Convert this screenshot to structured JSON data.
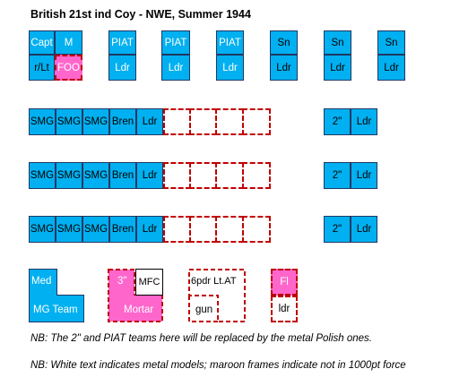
{
  "title": "British 21st ind Coy - NWE, Summer 1944",
  "colors": {
    "blue": "#00b0f0",
    "pink": "#ff66cc",
    "maroon": "#c00000"
  },
  "hq": {
    "top": [
      "Capt",
      "M"
    ],
    "bottom": [
      "r/Lt",
      "FOO"
    ]
  },
  "support_teams": [
    {
      "top": "PIAT",
      "bottom": "Ldr"
    },
    {
      "top": "PIAT",
      "bottom": "Ldr"
    },
    {
      "top": "PIAT",
      "bottom": "Ldr"
    },
    {
      "top": "Sn",
      "bottom": "Ldr"
    },
    {
      "top": "Sn",
      "bottom": "Ldr"
    },
    {
      "top": "Sn",
      "bottom": "Ldr"
    }
  ],
  "platoons": [
    {
      "cells": [
        "SMG",
        "SMG",
        "SMG",
        "Bren",
        "Ldr"
      ],
      "mortar": [
        "2\"",
        "Ldr"
      ]
    },
    {
      "cells": [
        "SMG",
        "SMG",
        "SMG",
        "Bren",
        "Ldr"
      ],
      "mortar": [
        "2\"",
        "Ldr"
      ]
    },
    {
      "cells": [
        "SMG",
        "SMG",
        "SMG",
        "Bren",
        "Ldr"
      ],
      "mortar": [
        "2\"",
        "Ldr"
      ]
    }
  ],
  "bottom_units": {
    "med": {
      "top": "Med",
      "bottom": "MG Team"
    },
    "mortar": {
      "a": "3\"",
      "b": "MFC",
      "c": "Mortar"
    },
    "atgun": {
      "a": "6pdr Lt.AT",
      "b": "gun"
    },
    "fl": {
      "top": "Fl",
      "bottom": "ldr"
    }
  },
  "notes": [
    "NB: The 2\" and PIAT teams here will be replaced by the metal Polish ones.",
    "NB: White text indicates metal models; maroon frames indicate not in 1000pt force"
  ]
}
